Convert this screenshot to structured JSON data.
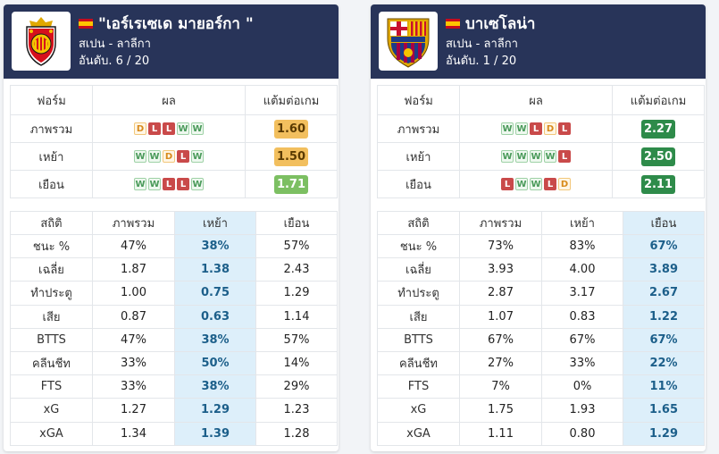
{
  "cards": [
    {
      "team_name": "\"เอร์เรเซเด มายอร์กา \"",
      "league": "สเปน - ลาลีกา",
      "rank": "อันดับ. 6 / 20",
      "flag_icon": "spain-flag-icon",
      "logo_icon": "mallorca-crest-icon",
      "form_headers": [
        "ฟอร์ม",
        "ผล",
        "แต้มต่อเกม"
      ],
      "form_rows": [
        {
          "label": "ภาพรวม",
          "results": [
            "D",
            "L",
            "L",
            "W",
            "W"
          ],
          "ppg": "1.60",
          "ppg_color": "orange"
        },
        {
          "label": "เหย้า",
          "results": [
            "W",
            "W",
            "D",
            "L",
            "W"
          ],
          "ppg": "1.50",
          "ppg_color": "orange"
        },
        {
          "label": "เยือน",
          "results": [
            "W",
            "W",
            "L",
            "L",
            "W"
          ],
          "ppg": "1.71",
          "ppg_color": "lgreen"
        }
      ],
      "stat_headers": [
        "สถิติ",
        "ภาพรวม",
        "เหย้า",
        "เยือน"
      ],
      "highlight_col": 2,
      "stat_rows": [
        {
          "label": "ชนะ %",
          "values": [
            "47%",
            "38%",
            "57%"
          ]
        },
        {
          "label": "เฉลี่ย",
          "values": [
            "1.87",
            "1.38",
            "2.43"
          ]
        },
        {
          "label": "ทำประตู",
          "values": [
            "1.00",
            "0.75",
            "1.29"
          ]
        },
        {
          "label": "เสีย",
          "values": [
            "0.87",
            "0.63",
            "1.14"
          ]
        },
        {
          "label": "BTTS",
          "values": [
            "47%",
            "38%",
            "57%"
          ]
        },
        {
          "label": "คลีนชีท",
          "values": [
            "33%",
            "50%",
            "14%"
          ]
        },
        {
          "label": "FTS",
          "values": [
            "33%",
            "38%",
            "29%"
          ]
        },
        {
          "label": "xG",
          "values": [
            "1.27",
            "1.29",
            "1.23"
          ]
        },
        {
          "label": "xGA",
          "values": [
            "1.34",
            "1.39",
            "1.28"
          ]
        }
      ]
    },
    {
      "team_name": "บาเซโลน่า",
      "league": "สเปน - ลาลีกา",
      "rank": "อันดับ. 1 / 20",
      "flag_icon": "spain-flag-icon",
      "logo_icon": "barcelona-crest-icon",
      "form_headers": [
        "ฟอร์ม",
        "ผล",
        "แต้มต่อเกม"
      ],
      "form_rows": [
        {
          "label": "ภาพรวม",
          "results": [
            "W",
            "W",
            "L",
            "D",
            "L"
          ],
          "ppg": "2.27",
          "ppg_color": "dgreen"
        },
        {
          "label": "เหย้า",
          "results": [
            "W",
            "W",
            "W",
            "W",
            "L"
          ],
          "ppg": "2.50",
          "ppg_color": "dgreen"
        },
        {
          "label": "เยือน",
          "results": [
            "L",
            "W",
            "W",
            "L",
            "D"
          ],
          "ppg": "2.11",
          "ppg_color": "dgreen"
        }
      ],
      "stat_headers": [
        "สถิติ",
        "ภาพรวม",
        "เหย้า",
        "เยือน"
      ],
      "highlight_col": 3,
      "stat_rows": [
        {
          "label": "ชนะ %",
          "values": [
            "73%",
            "83%",
            "67%"
          ]
        },
        {
          "label": "เฉลี่ย",
          "values": [
            "3.93",
            "4.00",
            "3.89"
          ]
        },
        {
          "label": "ทำประตู",
          "values": [
            "2.87",
            "3.17",
            "2.67"
          ]
        },
        {
          "label": "เสีย",
          "values": [
            "1.07",
            "0.83",
            "1.22"
          ]
        },
        {
          "label": "BTTS",
          "values": [
            "67%",
            "67%",
            "67%"
          ]
        },
        {
          "label": "คลีนชีท",
          "values": [
            "27%",
            "33%",
            "22%"
          ]
        },
        {
          "label": "FTS",
          "values": [
            "7%",
            "0%",
            "11%"
          ]
        },
        {
          "label": "xG",
          "values": [
            "1.75",
            "1.93",
            "1.65"
          ]
        },
        {
          "label": "xGA",
          "values": [
            "1.11",
            "0.80",
            "1.29"
          ]
        }
      ]
    }
  ]
}
